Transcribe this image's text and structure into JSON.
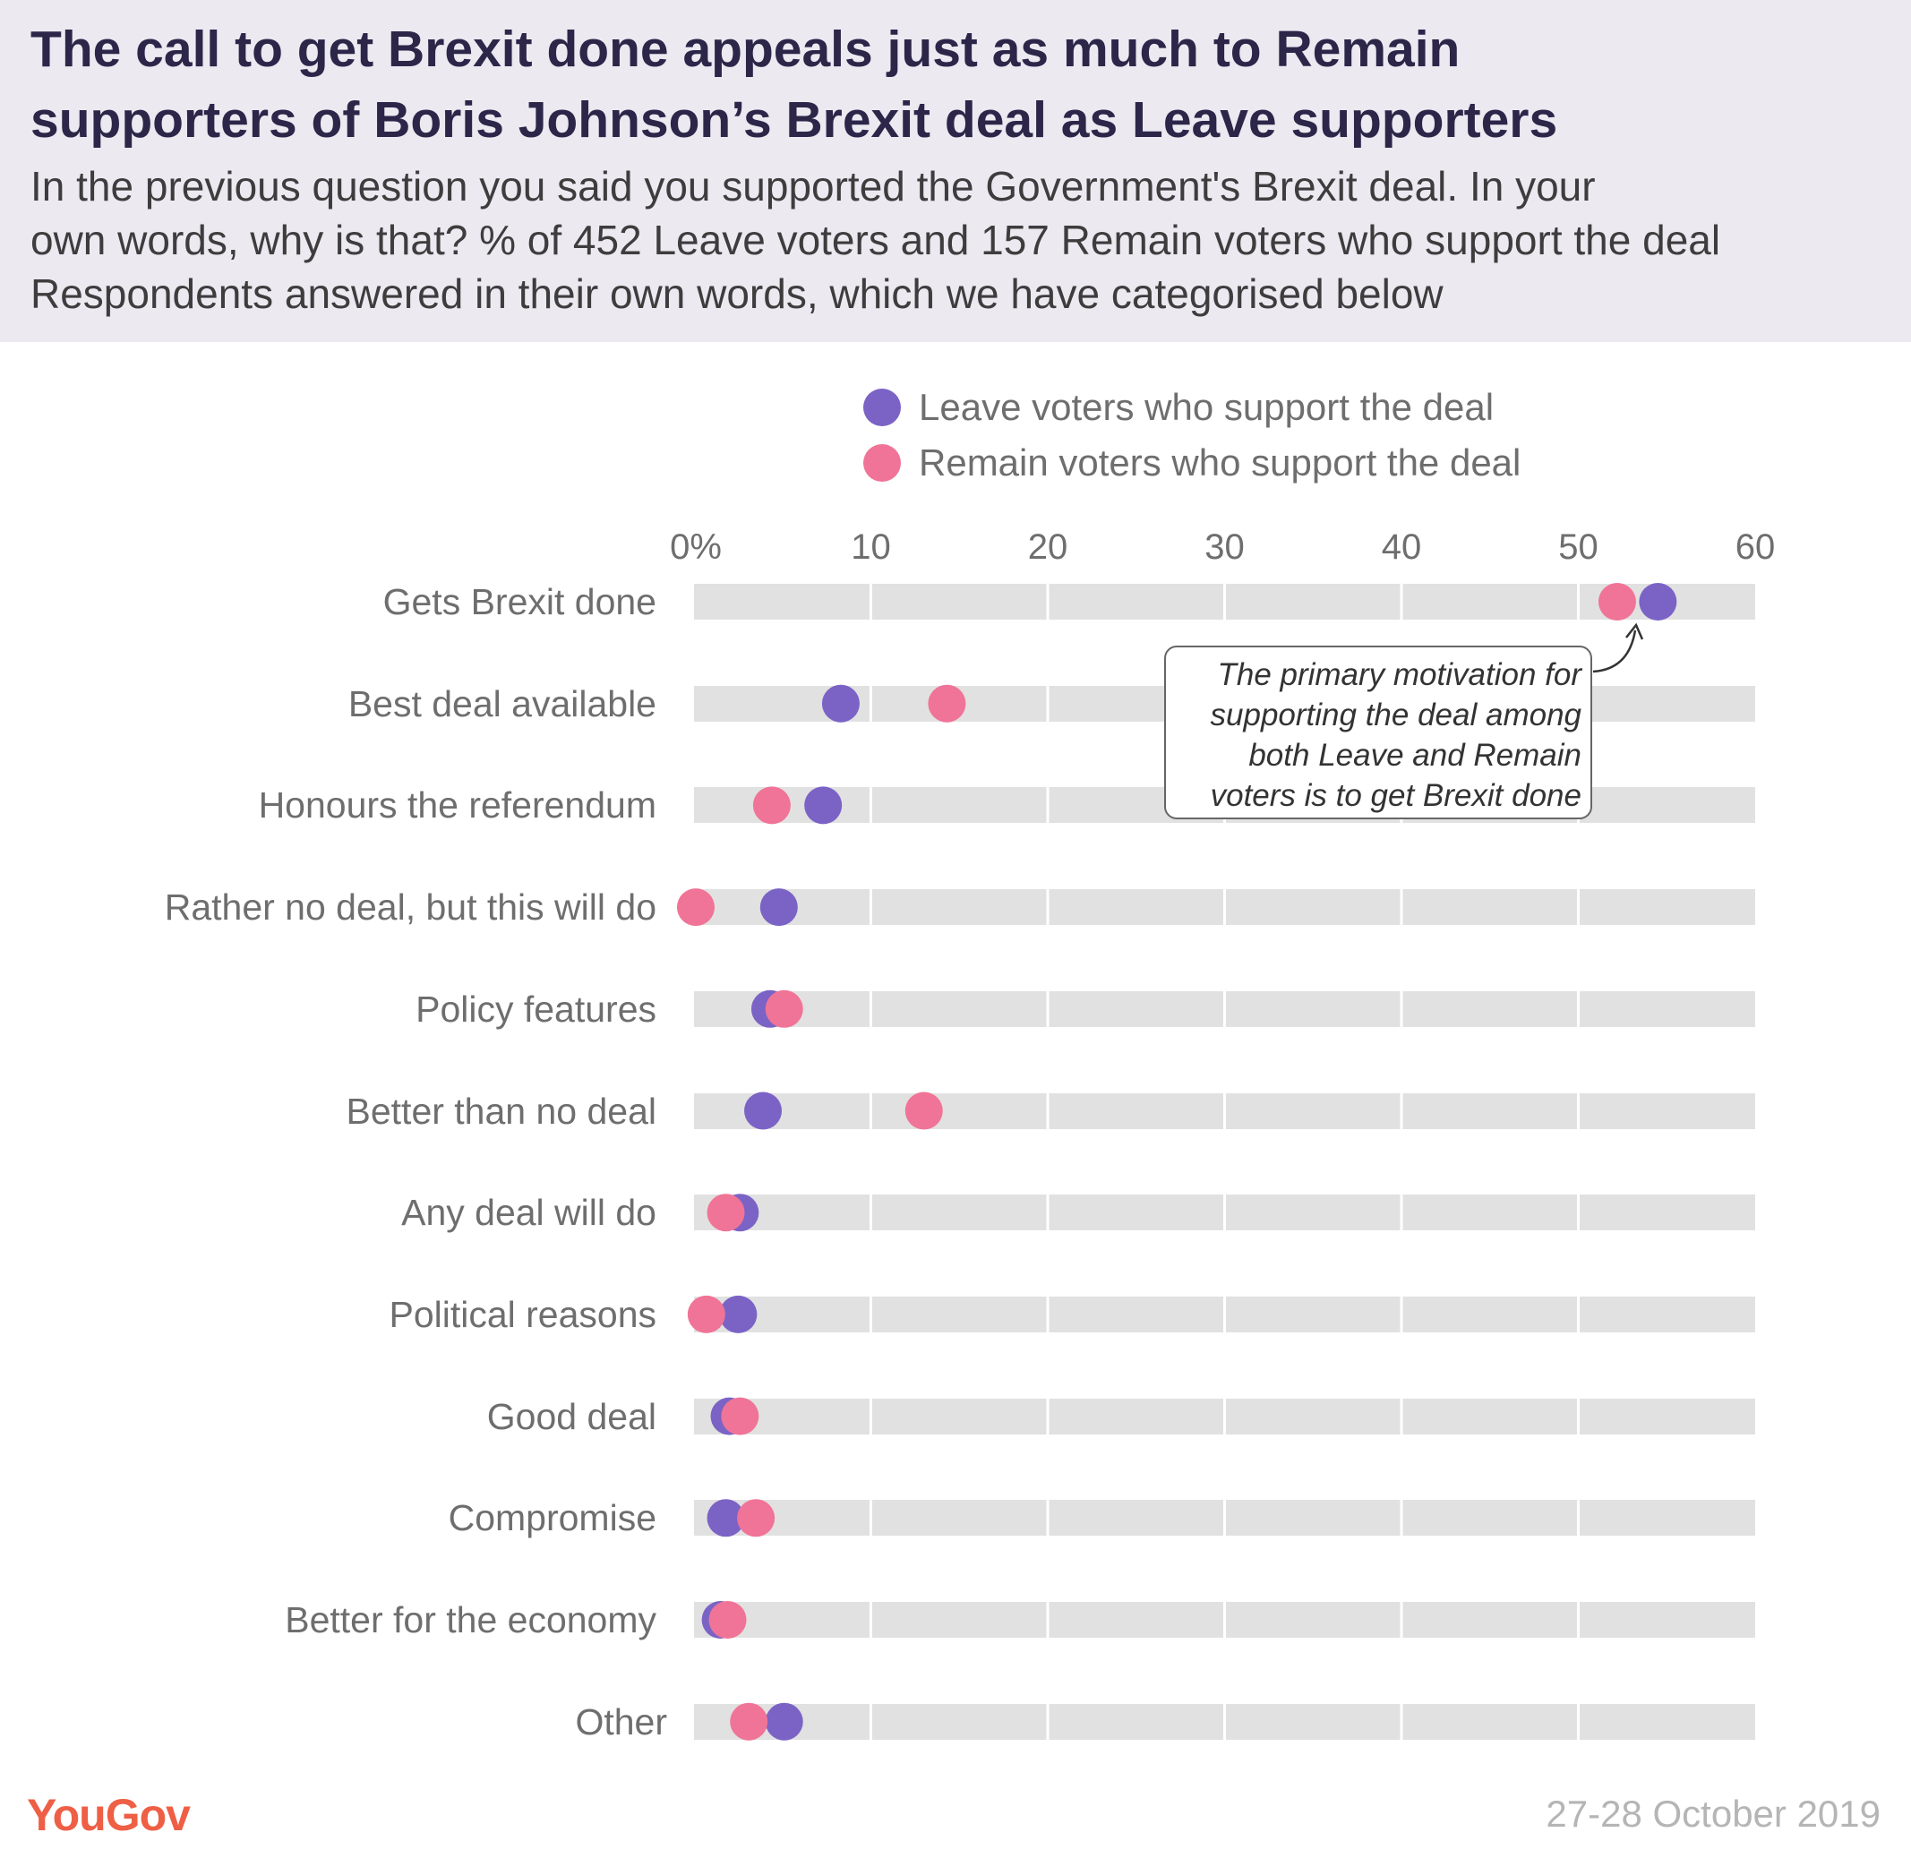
{
  "header": {
    "title_line1": "The call to get Brexit done appeals just as much to Remain",
    "title_line2": "supporters of Boris Johnson’s Brexit deal as Leave supporters",
    "subtitle_line1": "In the previous question you said you supported the Government's Brexit deal. In your",
    "subtitle_line2": "own words, why is that? % of 452 Leave voters and 157 Remain voters who support the deal",
    "subtitle_line3": "Respondents answered in their own words, which we have categorised below"
  },
  "legend": {
    "leave": "Leave voters who support the deal",
    "remain": "Remain voters who support the deal"
  },
  "colors": {
    "leave": "#7b63c6",
    "remain": "#f07497",
    "track": "#e1e1e1",
    "brand": "#ee5f46"
  },
  "annotation": {
    "line1": "The primary motivation for",
    "line2": "supporting the deal among",
    "line3": "both Leave and Remain",
    "line4": "voters is to get Brexit done"
  },
  "chart_data": {
    "type": "scatter",
    "subtype": "dot-plot",
    "xlim": [
      0,
      60
    ],
    "xticks": [
      "0%",
      "10",
      "20",
      "30",
      "40",
      "50",
      "60"
    ],
    "categories": [
      "Gets Brexit done",
      "Best deal available",
      "Honours the referendum",
      "Rather no deal, but this will do",
      "Policy features",
      "Better than no deal",
      "Any deal will do",
      "Political reasons",
      "Good deal",
      "Compromise",
      "Better for the economy",
      "Other"
    ],
    "series": [
      {
        "name": "Leave voters who support the deal",
        "key": "leave",
        "values": [
          54.5,
          8.3,
          7.3,
          4.8,
          4.3,
          3.9,
          2.6,
          2.5,
          2.0,
          1.8,
          1.5,
          5.1
        ]
      },
      {
        "name": "Remain voters who support the deal",
        "key": "remain",
        "values": [
          52.2,
          14.3,
          4.4,
          0.1,
          5.1,
          13.0,
          1.8,
          0.7,
          2.6,
          3.5,
          1.9,
          3.1
        ]
      }
    ],
    "grid": true,
    "legend_position": "top"
  },
  "footer": {
    "brand": "YouGov",
    "date": "27-28 October 2019"
  }
}
